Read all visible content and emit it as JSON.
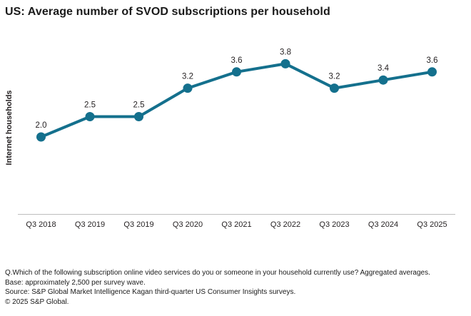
{
  "title": "US: Average number of SVOD subscriptions per household",
  "colors": {
    "line": "#14708d",
    "axis_line": "#bdbdbd",
    "text": "#231f20"
  },
  "chart_data": {
    "type": "line",
    "categories": [
      "Q3 2018",
      "Q3 2019",
      "Q3 2019",
      "Q3 2020",
      "Q3 2021",
      "Q3 2022",
      "Q3 2023",
      "Q3 2024",
      "Q3 2025"
    ],
    "values": [
      2.0,
      2.5,
      2.5,
      3.2,
      3.6,
      3.8,
      3.2,
      3.4,
      3.6
    ],
    "title": "US: Average number of SVOD subscriptions per household",
    "xlabel": "",
    "ylabel": "Internet households",
    "ylim": [
      0,
      4.4
    ],
    "grid": false,
    "legend": "none",
    "line_color": "#14708d",
    "marker": "circle",
    "data_labels": true
  },
  "footer": {
    "lines": [
      "Q.Which of the following subscription online video services do you or someone in your household currently use? Aggregated averages.",
      "Base: approximately 2,500 per survey wave.",
      "Source: S&P Global Market Intelligence Kagan third-quarter US Consumer Insights surveys.",
      "© 2025 S&P Global."
    ]
  }
}
